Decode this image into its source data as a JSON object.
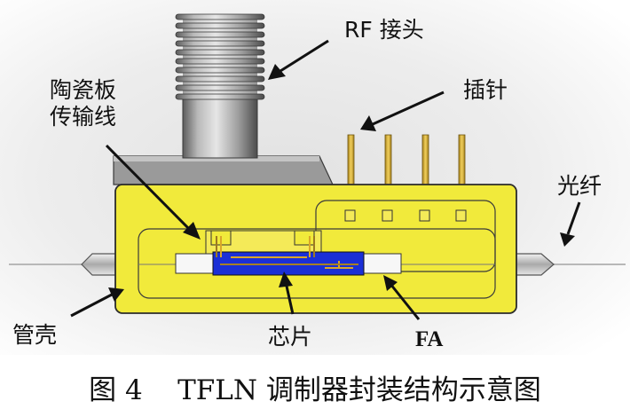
{
  "labels": {
    "rf_connector": "RF 接头",
    "ceramic_line_1": "陶瓷板",
    "ceramic_line_2": "传输线",
    "pins": "插针",
    "fiber": "光纤",
    "housing": "管壳",
    "chip": "芯片",
    "fa": "FA"
  },
  "caption": "图 4    TFLN 调制器封装结构示意图",
  "colors": {
    "housing": "#f1ea3b",
    "housing_stroke": "#2b2b2b",
    "chip": "#1b2fd6",
    "pin": "#d9b53a",
    "connector_gray": "#8f8f8f",
    "fiber_gray": "#b8b8b8"
  }
}
